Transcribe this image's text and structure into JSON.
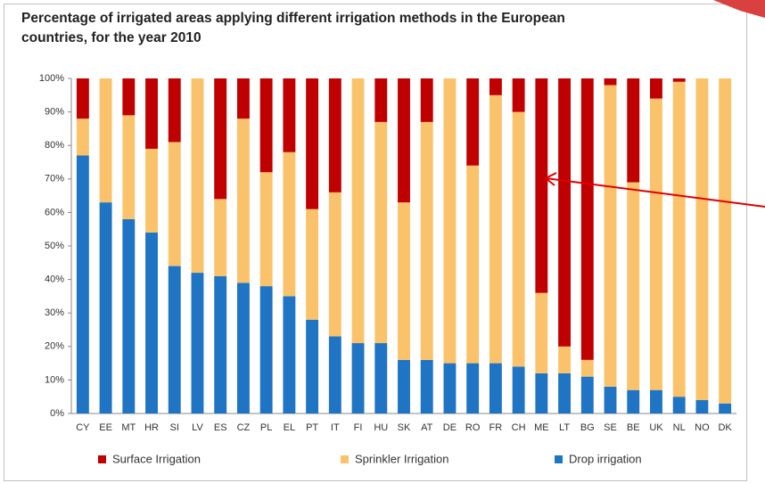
{
  "chart_data": {
    "type": "stacked_bar",
    "title": "Percentage of irrigated areas applying different irrigation methods in the European countries, for the year 2010",
    "categories": [
      "CY",
      "EE",
      "MT",
      "HR",
      "SI",
      "LV",
      "ES",
      "CZ",
      "PL",
      "EL",
      "PT",
      "IT",
      "FI",
      "HU",
      "SK",
      "AT",
      "DE",
      "RO",
      "FR",
      "CH",
      "ME",
      "LT",
      "BG",
      "SE",
      "BE",
      "UK",
      "NL",
      "NO",
      "DK"
    ],
    "series": [
      {
        "name": "Surface Irrigation",
        "color": "#c00000",
        "values": [
          12,
          0,
          11,
          21,
          19,
          0,
          36,
          12,
          28,
          22,
          39,
          34,
          0,
          13,
          37,
          13,
          0,
          26,
          5,
          10,
          64,
          80,
          84,
          2,
          31,
          6,
          1,
          0,
          0
        ]
      },
      {
        "name": "Sprinkler Irrigation",
        "color": "#fac36b",
        "values": [
          11,
          37,
          31,
          25,
          37,
          58,
          23,
          49,
          34,
          43,
          33,
          43,
          79,
          66,
          47,
          71,
          85,
          59,
          80,
          76,
          24,
          8,
          5,
          90,
          62,
          87,
          94,
          96,
          97
        ]
      },
      {
        "name": "Drop irrigation",
        "color": "#1f74c4",
        "values": [
          77,
          63,
          58,
          54,
          44,
          42,
          41,
          39,
          38,
          35,
          28,
          23,
          21,
          21,
          16,
          16,
          15,
          15,
          15,
          14,
          12,
          12,
          11,
          8,
          7,
          7,
          5,
          4,
          3
        ]
      }
    ],
    "ylim": [
      0,
      100
    ],
    "yticks": [
      {
        "value": 0,
        "label": "0%"
      },
      {
        "value": 10,
        "label": "10%"
      },
      {
        "value": 20,
        "label": "20%"
      },
      {
        "value": 30,
        "label": "30%"
      },
      {
        "value": 40,
        "label": "40%"
      },
      {
        "value": 50,
        "label": "50%"
      },
      {
        "value": 60,
        "label": "60%"
      },
      {
        "value": 70,
        "label": "70%"
      },
      {
        "value": 80,
        "label": "80%"
      },
      {
        "value": 90,
        "label": "90%"
      },
      {
        "value": 100,
        "label": "100%"
      }
    ],
    "grid": false,
    "legend": "bottom"
  }
}
